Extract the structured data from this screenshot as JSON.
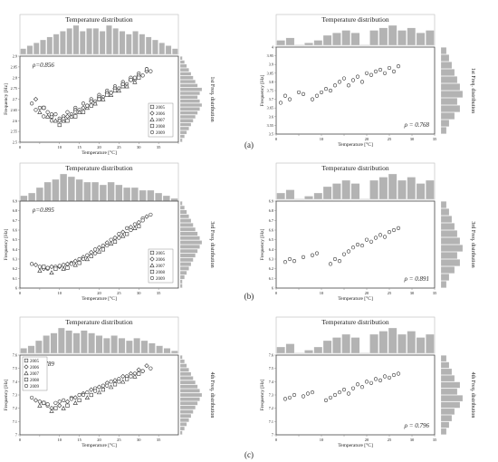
{
  "panel_labels": [
    "(a)",
    "(b)",
    "(c)"
  ],
  "colors": {
    "hist": "#b3b3b3",
    "hist_edge": "#ffffff",
    "marker": "#333333",
    "frame": "#444444",
    "axis": "#888888"
  },
  "chart_data": [
    {
      "id": "a-left",
      "type": "scatter",
      "title": "Temperature distribution",
      "xlabel": "Temperature [°C]",
      "ylabel": "Frequency [Hz]",
      "right_label": "1st Freq. distribution",
      "annotation": "ρ=0.856",
      "xlim": [
        0,
        40
      ],
      "ylim": [
        2.5,
        2.9
      ],
      "xticks": [
        0,
        5,
        10,
        15,
        20,
        25,
        30,
        35,
        40
      ],
      "xtick_labels": [
        "0",
        "",
        "10",
        "15",
        "20",
        "25",
        "30",
        "35",
        ""
      ],
      "yticks": [
        2.5,
        2.55,
        2.6,
        2.65,
        2.7,
        2.75,
        2.8,
        2.85,
        2.9
      ],
      "ytick_labels": [
        "2.5",
        "2.55",
        "2.6",
        "2.65",
        "2.7",
        "2.75",
        "2.8",
        "2.85",
        "2.9"
      ],
      "legend": [
        "2005",
        "2006",
        "2007",
        "2008",
        "2009"
      ],
      "top_hist": [
        2,
        3,
        4,
        5,
        6,
        7,
        8,
        9,
        10,
        8,
        9,
        9,
        8,
        10,
        9,
        8,
        7,
        8,
        7,
        6,
        5,
        4,
        3,
        2
      ],
      "right_hist": [
        1,
        2,
        3,
        4,
        5,
        6,
        7,
        8,
        9,
        10,
        9,
        8,
        9,
        10,
        8,
        7,
        6,
        5,
        4,
        3,
        2,
        1
      ],
      "series": [
        {
          "marker": "circle",
          "x": [
            3,
            4,
            5,
            6,
            7,
            8,
            9,
            10,
            11,
            12,
            13,
            14,
            15,
            16,
            17,
            18,
            19,
            20,
            21,
            22,
            23,
            24,
            25,
            26,
            27,
            28,
            29,
            30,
            31,
            32,
            33
          ],
          "y": [
            2.68,
            2.65,
            2.66,
            2.62,
            2.64,
            2.6,
            2.63,
            2.61,
            2.62,
            2.64,
            2.63,
            2.66,
            2.65,
            2.68,
            2.67,
            2.7,
            2.69,
            2.72,
            2.71,
            2.74,
            2.73,
            2.76,
            2.75,
            2.78,
            2.77,
            2.8,
            2.79,
            2.82,
            2.81,
            2.84,
            2.83
          ]
        },
        {
          "marker": "diamond",
          "x": [
            4,
            6,
            8,
            10,
            12,
            14,
            16,
            18,
            20,
            22,
            24,
            26,
            28,
            30,
            32
          ],
          "y": [
            2.7,
            2.66,
            2.62,
            2.6,
            2.62,
            2.65,
            2.66,
            2.69,
            2.71,
            2.73,
            2.75,
            2.77,
            2.79,
            2.81,
            2.83
          ]
        },
        {
          "marker": "triangle",
          "x": [
            5,
            7,
            9,
            11,
            13,
            15,
            17,
            19,
            21,
            23,
            25,
            27,
            29
          ],
          "y": [
            2.64,
            2.62,
            2.6,
            2.6,
            2.62,
            2.64,
            2.66,
            2.68,
            2.7,
            2.72,
            2.74,
            2.76,
            2.78
          ]
        },
        {
          "marker": "square",
          "x": [
            6,
            8,
            10,
            12,
            14,
            16,
            18,
            20,
            22,
            24,
            26,
            28,
            30
          ],
          "y": [
            2.66,
            2.62,
            2.58,
            2.6,
            2.62,
            2.64,
            2.67,
            2.7,
            2.72,
            2.74,
            2.76,
            2.79,
            2.8
          ]
        },
        {
          "marker": "circle",
          "x": [
            8,
            11,
            14,
            17,
            20,
            23,
            26,
            29,
            32
          ],
          "y": [
            2.63,
            2.61,
            2.64,
            2.67,
            2.7,
            2.73,
            2.77,
            2.8,
            2.84
          ]
        }
      ]
    },
    {
      "id": "a-right",
      "type": "scatter",
      "title": "Temperature distribution",
      "xlabel": "Temperature [°C]",
      "ylabel": "Frequency [Hz]",
      "right_label": "1st Freq. distribution",
      "annotation": "ρ = 0.768",
      "xlim": [
        0,
        35
      ],
      "ylim": [
        3.5,
        4
      ],
      "xticks": [
        0,
        5,
        10,
        15,
        20,
        25,
        30,
        35
      ],
      "xtick_labels": [
        "0",
        "",
        "10",
        "",
        "20",
        "25",
        "30",
        "35"
      ],
      "yticks": [
        3.5,
        3.55,
        3.6,
        3.65,
        3.7,
        3.75,
        3.8,
        3.85,
        3.9,
        3.95,
        4
      ],
      "ytick_labels": [
        "3.5",
        "3.55",
        "3.6",
        "3.65",
        "3.7",
        "3.75",
        "3.8",
        "3.85",
        "3.9",
        "3.95",
        "4"
      ],
      "legend": [],
      "top_hist": [
        2,
        3,
        0,
        1,
        2,
        4,
        5,
        6,
        5,
        0,
        6,
        7,
        8,
        6,
        7,
        5,
        6
      ],
      "right_hist": [
        2,
        3,
        5,
        7,
        6,
        8,
        7,
        6,
        5,
        4,
        3,
        2
      ],
      "series": [
        {
          "marker": "circle",
          "x": [
            1,
            2,
            3,
            5,
            6,
            8,
            9,
            10,
            11,
            12,
            13,
            14,
            15,
            16,
            17,
            18,
            19,
            20,
            21,
            22,
            23,
            24,
            25,
            26,
            27
          ],
          "y": [
            3.68,
            3.72,
            3.7,
            3.74,
            3.73,
            3.7,
            3.72,
            3.74,
            3.76,
            3.75,
            3.78,
            3.8,
            3.82,
            3.78,
            3.81,
            3.83,
            3.8,
            3.85,
            3.84,
            3.86,
            3.87,
            3.85,
            3.88,
            3.86,
            3.89
          ]
        }
      ]
    },
    {
      "id": "b-left",
      "type": "scatter",
      "title": "Temperature distribution",
      "xlabel": "Temperature [°C]",
      "ylabel": "Frequency [Hz]",
      "right_label": "3rd Freq. distribution",
      "annotation": "ρ=0.895",
      "xlim": [
        0,
        40
      ],
      "ylim": [
        6,
        6.9
      ],
      "xticks": [
        0,
        5,
        10,
        15,
        20,
        25,
        30,
        35
      ],
      "xtick_labels": [
        "0",
        "",
        "10",
        "",
        "20",
        "25",
        "30",
        "35"
      ],
      "yticks": [
        6,
        6.1,
        6.2,
        6.3,
        6.4,
        6.5,
        6.6,
        6.7,
        6.8,
        6.9
      ],
      "ytick_labels": [
        "6",
        "6.1",
        "6.2",
        "6.3",
        "6.4",
        "6.5",
        "6.6",
        "6.7",
        "6.8",
        "6.9"
      ],
      "legend": [
        "2005",
        "2006",
        "2007",
        "2008",
        "2009"
      ],
      "top_hist": [
        2,
        3,
        5,
        7,
        8,
        10,
        9,
        8,
        7,
        7,
        6,
        7,
        6,
        5,
        5,
        4,
        4,
        3,
        2,
        1
      ],
      "right_hist": [
        1,
        1,
        2,
        3,
        4,
        5,
        6,
        7,
        8,
        9,
        10,
        9,
        8,
        7,
        6,
        5,
        4,
        3,
        2,
        1
      ],
      "series": [
        {
          "marker": "circle",
          "x": [
            3,
            5,
            7,
            9,
            11,
            13,
            15,
            17,
            19,
            21,
            23,
            25,
            27,
            29,
            31,
            33
          ],
          "y": [
            6.25,
            6.22,
            6.2,
            6.22,
            6.24,
            6.26,
            6.3,
            6.34,
            6.4,
            6.44,
            6.5,
            6.56,
            6.62,
            6.66,
            6.72,
            6.76
          ]
        },
        {
          "marker": "diamond",
          "x": [
            4,
            6,
            8,
            10,
            12,
            14,
            16,
            18,
            20,
            22,
            24,
            26,
            28,
            30,
            32
          ],
          "y": [
            6.24,
            6.2,
            6.22,
            6.22,
            6.25,
            6.28,
            6.32,
            6.37,
            6.42,
            6.47,
            6.52,
            6.58,
            6.63,
            6.68,
            6.74
          ]
        },
        {
          "marker": "triangle",
          "x": [
            5,
            8,
            11,
            14,
            17,
            20,
            23,
            26,
            29
          ],
          "y": [
            6.18,
            6.16,
            6.2,
            6.24,
            6.3,
            6.38,
            6.46,
            6.54,
            6.62
          ]
        },
        {
          "marker": "square",
          "x": [
            6,
            9,
            12,
            15,
            18,
            21,
            24,
            27,
            30
          ],
          "y": [
            6.22,
            6.2,
            6.21,
            6.26,
            6.33,
            6.4,
            6.48,
            6.56,
            6.64
          ]
        },
        {
          "marker": "circle",
          "x": [
            7,
            10,
            13,
            16,
            19,
            22,
            25,
            28,
            31
          ],
          "y": [
            6.21,
            6.23,
            6.25,
            6.3,
            6.36,
            6.44,
            6.52,
            6.6,
            6.7
          ]
        }
      ]
    },
    {
      "id": "b-right",
      "type": "scatter",
      "title": "Temperature distribution",
      "xlabel": "Temperature [°C]",
      "ylabel": "Frequency [Hz]",
      "right_label": "3rd Freq. distribution",
      "annotation": "ρ = 0.891",
      "xlim": [
        0,
        35
      ],
      "ylim": [
        6,
        6.9
      ],
      "xticks": [
        0,
        5,
        10,
        15,
        20,
        25,
        30,
        35
      ],
      "xtick_labels": [
        "0",
        "",
        "10",
        "",
        "20",
        "25",
        "30",
        "35"
      ],
      "yticks": [
        6,
        6.1,
        6.2,
        6.3,
        6.4,
        6.5,
        6.6,
        6.7,
        6.8,
        6.9
      ],
      "ytick_labels": [
        "6",
        "6.1",
        "6.2",
        "6.3",
        "6.4",
        "6.5",
        "6.6",
        "6.7",
        "6.8",
        "6.9"
      ],
      "legend": [],
      "top_hist": [
        2,
        3,
        0,
        1,
        2,
        4,
        5,
        6,
        5,
        0,
        6,
        7,
        8,
        6,
        7,
        5,
        6
      ],
      "right_hist": [
        2,
        3,
        5,
        7,
        6,
        8,
        7,
        6,
        5,
        4,
        3,
        2
      ],
      "series": [
        {
          "marker": "circle",
          "x": [
            2,
            3,
            4,
            6,
            8,
            9,
            12,
            13,
            14,
            15,
            16,
            17,
            18,
            19,
            20,
            21,
            22,
            23,
            24,
            25,
            26,
            27
          ],
          "y": [
            6.27,
            6.3,
            6.28,
            6.32,
            6.34,
            6.36,
            6.25,
            6.3,
            6.28,
            6.35,
            6.38,
            6.42,
            6.45,
            6.44,
            6.5,
            6.48,
            6.52,
            6.55,
            6.53,
            6.58,
            6.6,
            6.62
          ]
        }
      ]
    },
    {
      "id": "c-left",
      "type": "scatter",
      "title": "Temperature distribution",
      "xlabel": "Temperature [°C]",
      "ylabel": "Frequency [Hz]",
      "right_label": "4th Freq. distribution",
      "annotation": "ρ=0.789",
      "xlim": [
        0,
        40
      ],
      "ylim": [
        7,
        7.6
      ],
      "xticks": [
        0,
        5,
        10,
        15,
        20,
        25,
        30,
        35
      ],
      "xtick_labels": [
        "0",
        "",
        "10",
        "15",
        "20",
        "25",
        "30",
        "35"
      ],
      "yticks": [
        7,
        7.1,
        7.2,
        7.3,
        7.4,
        7.5,
        7.6
      ],
      "ytick_labels": [
        "7",
        "7.1",
        "7.2",
        "7.3",
        "7.4",
        "7.5",
        "7.6"
      ],
      "legend": [
        "2005",
        "2006",
        "2007",
        "2008",
        "2009"
      ],
      "top_hist": [
        2,
        3,
        5,
        7,
        8,
        10,
        9,
        8,
        9,
        8,
        7,
        6,
        7,
        6,
        5,
        6,
        5,
        4,
        3,
        2,
        1
      ],
      "right_hist": [
        1,
        2,
        3,
        4,
        5,
        6,
        7,
        8,
        9,
        10,
        9,
        8,
        7,
        6,
        5,
        4,
        3,
        2,
        1
      ],
      "series": [
        {
          "marker": "circle",
          "x": [
            3,
            5,
            7,
            9,
            11,
            13,
            15,
            17,
            19,
            21,
            23,
            25,
            27,
            29,
            31,
            33
          ],
          "y": [
            7.28,
            7.25,
            7.22,
            7.24,
            7.26,
            7.28,
            7.3,
            7.32,
            7.35,
            7.37,
            7.4,
            7.42,
            7.44,
            7.46,
            7.48,
            7.5
          ]
        },
        {
          "marker": "diamond",
          "x": [
            4,
            6,
            8,
            10,
            12,
            14,
            16,
            18,
            20,
            22,
            24,
            26,
            28,
            30,
            32
          ],
          "y": [
            7.26,
            7.24,
            7.2,
            7.22,
            7.25,
            7.28,
            7.31,
            7.34,
            7.36,
            7.39,
            7.41,
            7.44,
            7.46,
            7.49,
            7.52
          ]
        },
        {
          "marker": "triangle",
          "x": [
            5,
            8,
            11,
            14,
            17,
            20,
            23,
            26,
            29
          ],
          "y": [
            7.22,
            7.18,
            7.2,
            7.24,
            7.28,
            7.32,
            7.36,
            7.4,
            7.44
          ]
        },
        {
          "marker": "square",
          "x": [
            6,
            9,
            12,
            15,
            18,
            21,
            24,
            27,
            30
          ],
          "y": [
            7.24,
            7.2,
            7.22,
            7.26,
            7.3,
            7.34,
            7.38,
            7.42,
            7.46
          ]
        },
        {
          "marker": "circle",
          "x": [
            7,
            10,
            13,
            16,
            19,
            22,
            25,
            28,
            31
          ],
          "y": [
            7.23,
            7.25,
            7.27,
            7.3,
            7.33,
            7.37,
            7.4,
            7.44,
            7.48
          ]
        }
      ]
    },
    {
      "id": "c-right",
      "type": "scatter",
      "title": "Temperature distribution",
      "xlabel": "Temperature [°C]",
      "ylabel": "Frequency [Hz]",
      "right_label": "4th Freq. distribution",
      "annotation": "ρ = 0.796",
      "xlim": [
        0,
        35
      ],
      "ylim": [
        7,
        7.6
      ],
      "xticks": [
        0,
        5,
        10,
        15,
        20,
        25,
        30,
        35
      ],
      "xtick_labels": [
        "0",
        "",
        "10",
        "",
        "20",
        "25",
        "30",
        "35"
      ],
      "yticks": [
        7,
        7.1,
        7.2,
        7.3,
        7.4,
        7.5,
        7.6
      ],
      "ytick_labels": [
        "7",
        "7.1",
        "7.2",
        "7.3",
        "7.4",
        "7.5",
        "7.6"
      ],
      "legend": [],
      "top_hist": [
        2,
        3,
        0,
        1,
        2,
        4,
        5,
        6,
        5,
        0,
        6,
        7,
        8,
        6,
        7,
        5,
        6
      ],
      "right_hist": [
        2,
        3,
        4,
        5,
        7,
        8,
        6,
        7,
        5,
        4,
        3,
        2
      ],
      "series": [
        {
          "marker": "circle",
          "x": [
            2,
            3,
            4,
            6,
            7,
            8,
            11,
            12,
            13,
            14,
            15,
            16,
            17,
            18,
            19,
            20,
            21,
            22,
            23,
            24,
            25,
            26,
            27
          ],
          "y": [
            7.27,
            7.28,
            7.3,
            7.29,
            7.31,
            7.32,
            7.26,
            7.28,
            7.3,
            7.32,
            7.34,
            7.31,
            7.35,
            7.38,
            7.36,
            7.4,
            7.39,
            7.42,
            7.41,
            7.44,
            7.43,
            7.45,
            7.46
          ]
        }
      ]
    }
  ]
}
